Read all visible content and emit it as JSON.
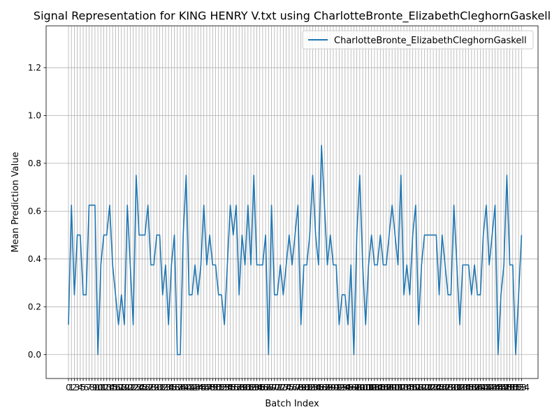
{
  "chart_data": {
    "type": "line",
    "title": "Signal Representation for KING HENRY V.txt using CharlotteBronte_ElizabethCleghornGaskell",
    "xlabel": "Batch Index",
    "ylabel": "Mean Prediction Value",
    "xlim": [
      -7.6,
      159.6
    ],
    "ylim": [
      -0.1,
      1.375
    ],
    "yticks": [
      0.0,
      0.2,
      0.4,
      0.6,
      0.8,
      1.0,
      1.2
    ],
    "grid": true,
    "legend_position": "top-right",
    "series": [
      {
        "name": "CharlotteBronte_ElizabethCleghornGaskell",
        "color": "#1f77b4",
        "values": [
          0.125,
          0.625,
          0.25,
          0.5,
          0.5,
          0.25,
          0.25,
          0.625,
          0.625,
          0.625,
          0.0,
          0.375,
          0.5,
          0.5,
          0.625,
          0.375,
          0.25,
          0.125,
          0.25,
          0.125,
          0.625,
          0.375,
          0.125,
          0.75,
          0.5,
          0.5,
          0.5,
          0.625,
          0.375,
          0.375,
          0.5,
          0.5,
          0.25,
          0.375,
          0.125,
          0.375,
          0.5,
          0.0,
          0.0,
          0.5,
          0.75,
          0.25,
          0.25,
          0.375,
          0.25,
          0.375,
          0.625,
          0.375,
          0.5,
          0.375,
          0.375,
          0.25,
          0.25,
          0.125,
          0.375,
          0.625,
          0.5,
          0.625,
          0.25,
          0.5,
          0.375,
          0.625,
          0.375,
          0.75,
          0.375,
          0.375,
          0.375,
          0.5,
          0.0,
          0.625,
          0.25,
          0.25,
          0.375,
          0.25,
          0.375,
          0.5,
          0.375,
          0.5,
          0.625,
          0.125,
          0.375,
          0.375,
          0.5,
          0.75,
          0.5,
          0.375,
          0.875,
          0.625,
          0.375,
          0.5,
          0.375,
          0.375,
          0.125,
          0.25,
          0.25,
          0.125,
          0.375,
          0.0,
          0.5,
          0.75,
          0.375,
          0.125,
          0.375,
          0.5,
          0.375,
          0.375,
          0.5,
          0.375,
          0.375,
          0.5,
          0.625,
          0.5,
          0.375,
          0.75,
          0.25,
          0.375,
          0.25,
          0.5,
          0.625,
          0.125,
          0.375,
          0.5,
          0.5,
          0.5,
          0.5,
          0.5,
          0.25,
          0.5,
          0.375,
          0.25,
          0.25,
          0.625,
          0.375,
          0.125,
          0.375,
          0.375,
          0.375,
          0.25,
          0.375,
          0.25,
          0.25,
          0.5,
          0.625,
          0.375,
          0.5,
          0.625,
          0.0,
          0.25,
          0.375,
          0.75,
          0.375,
          0.375,
          0.0,
          0.25,
          0.5
        ]
      }
    ]
  }
}
